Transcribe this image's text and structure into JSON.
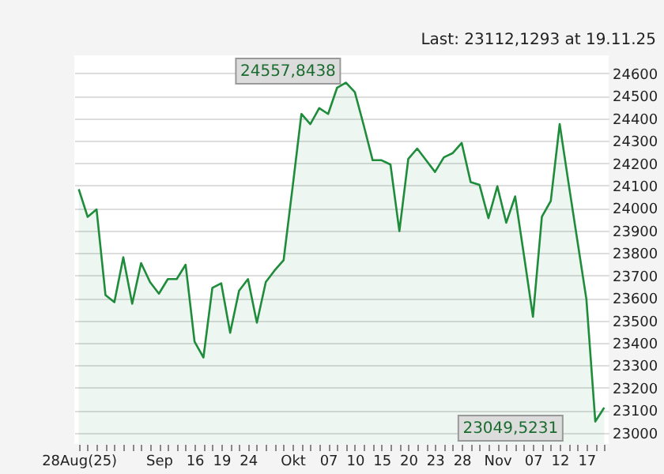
{
  "chart_data": {
    "type": "area",
    "categories": [
      "28Aug(25)",
      null,
      null,
      null,
      null,
      null,
      null,
      null,
      null,
      "Sep",
      null,
      null,
      null,
      "16",
      null,
      null,
      "19",
      null,
      null,
      "24",
      null,
      null,
      null,
      null,
      "Okt",
      null,
      null,
      null,
      "07",
      null,
      null,
      "10",
      null,
      null,
      "15",
      null,
      null,
      "20",
      null,
      null,
      "23",
      null,
      null,
      "28",
      null,
      null,
      null,
      "Nov",
      null,
      null,
      null,
      "07",
      null,
      null,
      "12",
      null,
      null,
      "17",
      null,
      null
    ],
    "series": [
      {
        "color": "#1e8c3a",
        "values": [
          24084,
          23961,
          23994,
          23613,
          23581,
          23781,
          23574,
          23755,
          23671,
          23619,
          23684,
          23684,
          23748,
          23406,
          23335,
          23645,
          23665,
          23445,
          23632,
          23684,
          23490,
          23671,
          23723,
          23768,
          24090,
          24419,
          24374,
          24445,
          24419,
          24535,
          24558,
          24516,
          24368,
          24213,
          24213,
          24194,
          23897,
          24219,
          24265,
          24213,
          24161,
          24226,
          24245,
          24290,
          24116,
          24103,
          23955,
          24097,
          23935,
          24052,
          23787,
          23516,
          23961,
          24032,
          24374,
          24110,
          23852,
          23594,
          23050,
          23112
        ]
      }
    ],
    "ylim": [
      22950,
      24680
    ],
    "yticks": [
      23000,
      23100,
      23200,
      23300,
      23400,
      23500,
      23600,
      23700,
      23800,
      23900,
      24000,
      24100,
      24200,
      24300,
      24400,
      24500,
      24600
    ],
    "grid": "y",
    "annotations": [
      "Last: 23112,1293 at 19.11.25",
      "24557,8438",
      "23049,5231"
    ]
  }
}
